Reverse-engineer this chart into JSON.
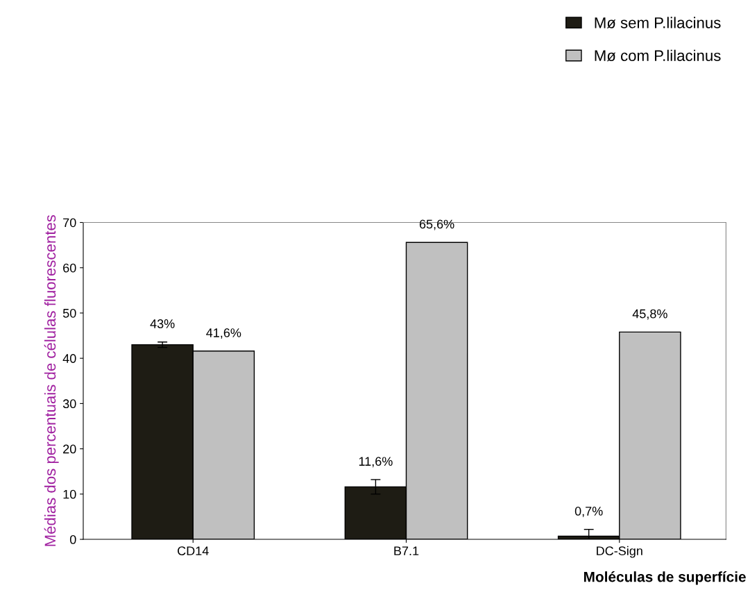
{
  "chart_data": {
    "type": "bar",
    "categories": [
      "CD14",
      "B7.1",
      "DC-Sign"
    ],
    "series": [
      {
        "name": "Mø sem P.lilacinus",
        "color": "#1e1c14",
        "values": [
          43,
          11.6,
          0.7
        ],
        "errors": [
          [
            42.4,
            43.6
          ],
          [
            10,
            13.2
          ],
          [
            0,
            2.2
          ]
        ],
        "value_labels": [
          "43%",
          "11,6%",
          "0,7%"
        ]
      },
      {
        "name": "Mø com P.lilacinus",
        "color": "#c0c0c0",
        "values": [
          41.6,
          65.6,
          45.8
        ],
        "value_labels": [
          "41,6%",
          "65,6%",
          "45,8%"
        ]
      }
    ],
    "ylabel": "Médias dos percentuais de células fluorescentes",
    "xlabel": "Moléculas de superfície",
    "ylim": [
      0,
      70
    ],
    "yticks": [
      0,
      10,
      20,
      30,
      40,
      50,
      60,
      70
    ],
    "grid": false,
    "legend": "top right"
  }
}
